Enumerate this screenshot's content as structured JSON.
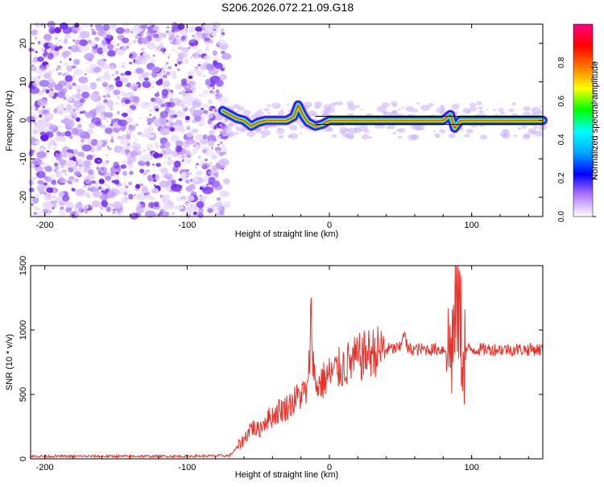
{
  "title": "S206.2026.072.21.09.G18",
  "chart_data": [
    {
      "type": "heatmap",
      "name": "spectrogram",
      "xlabel": "Height of straight line (km)",
      "ylabel": "Frequency (Hz)",
      "xlim": [
        -210,
        150
      ],
      "ylim": [
        -25,
        25
      ],
      "xticks": [
        -200,
        -100,
        0,
        100
      ],
      "yticks": [
        -20,
        -10,
        0,
        10,
        20
      ],
      "noise_region_x": [
        -210,
        -72
      ],
      "ridge_frequency_hz": 0,
      "ridge_points": [
        {
          "x": -75,
          "y": 2.5
        },
        {
          "x": -70,
          "y": 1.5
        },
        {
          "x": -65,
          "y": 0.5
        },
        {
          "x": -60,
          "y": 0
        },
        {
          "x": -55,
          "y": -1.5
        },
        {
          "x": -50,
          "y": -0.5
        },
        {
          "x": -45,
          "y": 0
        },
        {
          "x": -40,
          "y": 0
        },
        {
          "x": -35,
          "y": 0
        },
        {
          "x": -30,
          "y": 0
        },
        {
          "x": -25,
          "y": 1
        },
        {
          "x": -22,
          "y": 4
        },
        {
          "x": -18,
          "y": 1
        },
        {
          "x": -15,
          "y": -0.5
        },
        {
          "x": -10,
          "y": -1.5
        },
        {
          "x": -5,
          "y": -1
        },
        {
          "x": 0,
          "y": 0
        },
        {
          "x": 10,
          "y": 0
        },
        {
          "x": 20,
          "y": 0
        },
        {
          "x": 40,
          "y": 0
        },
        {
          "x": 60,
          "y": 0
        },
        {
          "x": 80,
          "y": 0
        },
        {
          "x": 85,
          "y": 1.5
        },
        {
          "x": 88,
          "y": -2
        },
        {
          "x": 92,
          "y": 0
        },
        {
          "x": 120,
          "y": 0
        },
        {
          "x": 150,
          "y": 0
        }
      ],
      "colorbar": {
        "label": "Normalized spectral amplitude",
        "range": [
          0.0,
          1.0
        ],
        "ticks": [
          "0.0",
          "0.2",
          "0.4",
          "0.6",
          "0.8"
        ],
        "colors": [
          "#ffffff",
          "#b278ff",
          "#0000ff",
          "#00aaff",
          "#00ffff",
          "#00ff00",
          "#ffff00",
          "#ff7700",
          "#ff0000",
          "#ff0080"
        ]
      }
    },
    {
      "type": "line",
      "name": "snr",
      "xlabel": "Height of straight line (km)",
      "ylabel": "SNR (10 * v/v)",
      "xlim": [
        -210,
        150
      ],
      "ylim": [
        0,
        1500
      ],
      "xticks": [
        -200,
        -100,
        0,
        100
      ],
      "yticks": [
        0,
        500,
        1000,
        1500
      ],
      "color": "#e8322a",
      "series": [
        {
          "name": "SNR",
          "x": [
            -210,
            -150,
            -100,
            -70,
            -60,
            -55,
            -50,
            -45,
            -40,
            -35,
            -30,
            -25,
            -20,
            -15,
            -13,
            -10,
            -5,
            0,
            10,
            20,
            30,
            40,
            50,
            52,
            55,
            60,
            70,
            80,
            85,
            88,
            90,
            92,
            94,
            96,
            100,
            120,
            150
          ],
          "y": [
            20,
            20,
            20,
            25,
            150,
            250,
            220,
            300,
            330,
            380,
            400,
            450,
            500,
            520,
            1100,
            560,
            600,
            650,
            720,
            780,
            830,
            850,
            860,
            1000,
            850,
            850,
            850,
            850,
            850,
            1000,
            1500,
            1000,
            850,
            850,
            850,
            850,
            850
          ]
        }
      ]
    }
  ]
}
